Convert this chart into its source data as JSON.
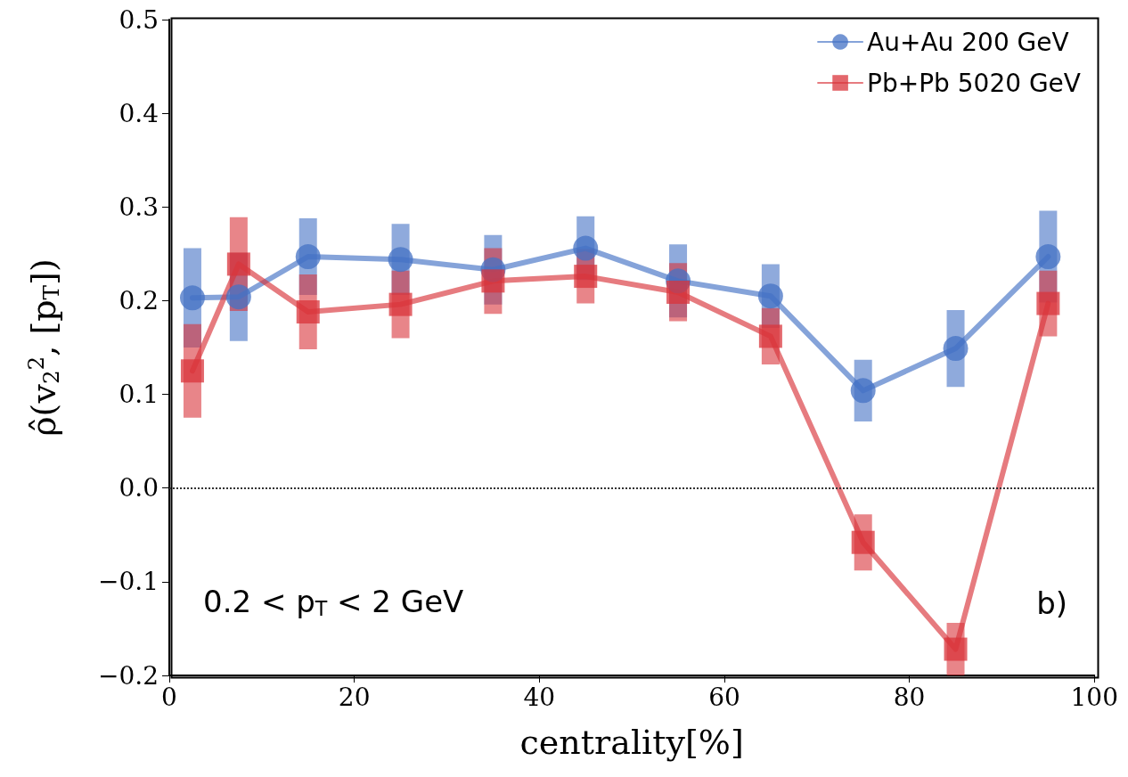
{
  "chart_data": {
    "type": "line",
    "xlabel": "centrality[%]",
    "ylabel": "ρ̂(v$_{2}$$^{2}$, [p$_{T}$])",
    "x": [
      2.5,
      7.5,
      15,
      25,
      35,
      45,
      55,
      65,
      75,
      85,
      95
    ],
    "series": [
      {
        "name": "Au+Au 200 GeV",
        "color": "#4472c4",
        "marker": "circle",
        "values": [
          0.203,
          0.204,
          0.247,
          0.244,
          0.233,
          0.256,
          0.221,
          0.205,
          0.104,
          0.149,
          0.247
        ],
        "errors": [
          0.053,
          0.047,
          0.041,
          0.038,
          0.037,
          0.034,
          0.039,
          0.034,
          0.033,
          0.041,
          0.049
        ]
      },
      {
        "name": "Pb+Pb 5020 GeV",
        "color": "#d9343b",
        "marker": "square",
        "values": [
          0.125,
          0.239,
          0.188,
          0.196,
          0.221,
          0.226,
          0.209,
          0.162,
          -0.058,
          -0.172,
          0.197
        ],
        "errors": [
          0.05,
          0.05,
          0.04,
          0.036,
          0.035,
          0.029,
          0.031,
          0.03,
          0.03,
          0.028,
          0.035
        ]
      }
    ],
    "xlim": [
      0,
      100
    ],
    "xticks": [
      0,
      20,
      40,
      60,
      80,
      100
    ],
    "ylim": [
      -0.2,
      0.5
    ],
    "yticks": [
      {
        "value": -0.2,
        "label": "−0.2"
      },
      {
        "value": -0.1,
        "label": "−0.1"
      },
      {
        "value": 0,
        "label": "0.0"
      },
      {
        "value": 0.1,
        "label": "0.1"
      },
      {
        "value": 0.2,
        "label": "0.2"
      },
      {
        "value": 0.3,
        "label": "0.3"
      },
      {
        "value": 0.4,
        "label": "0.4"
      },
      {
        "value": 0.5,
        "label": "0.5"
      }
    ],
    "ref_lines": [
      {
        "axis": "y",
        "value": 0,
        "color": "#333333",
        "line_style": "dotted"
      }
    ],
    "annotations": [
      "0.2 < p$_{T}$ < 2 GeV",
      "b)"
    ],
    "legend": "top right",
    "grid": false,
    "line_style": "solid"
  }
}
